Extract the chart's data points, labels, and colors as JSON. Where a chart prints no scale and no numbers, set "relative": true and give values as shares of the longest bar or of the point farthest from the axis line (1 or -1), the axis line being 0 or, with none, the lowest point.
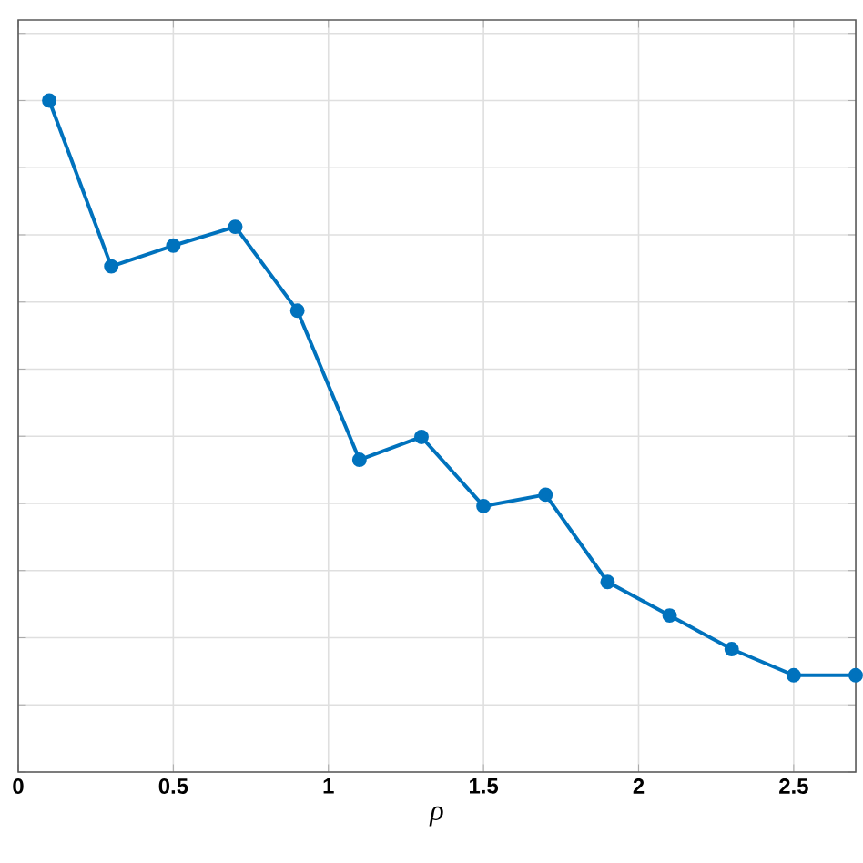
{
  "chart_data": {
    "type": "line",
    "xlabel": "ρ",
    "relative": true,
    "x": [
      0.1,
      0.3,
      0.5,
      0.7,
      0.9,
      1.1,
      1.3,
      1.5,
      1.7,
      1.9,
      2.1,
      2.3,
      2.5,
      2.7
    ],
    "series": [
      {
        "color": "#0072bd",
        "values": [
          1,
          0.753,
          0.784,
          0.812,
          0.687,
          0.465,
          0.499,
          0.396,
          0.413,
          0.283,
          0.233,
          0.183,
          0.144,
          0.144
        ]
      }
    ],
    "xlim": [
      0,
      2.7
    ],
    "xticks": [
      0,
      0.5,
      1,
      1.5,
      2,
      2.5
    ],
    "grid": true,
    "marker": "circle",
    "line_style": "solid"
  }
}
